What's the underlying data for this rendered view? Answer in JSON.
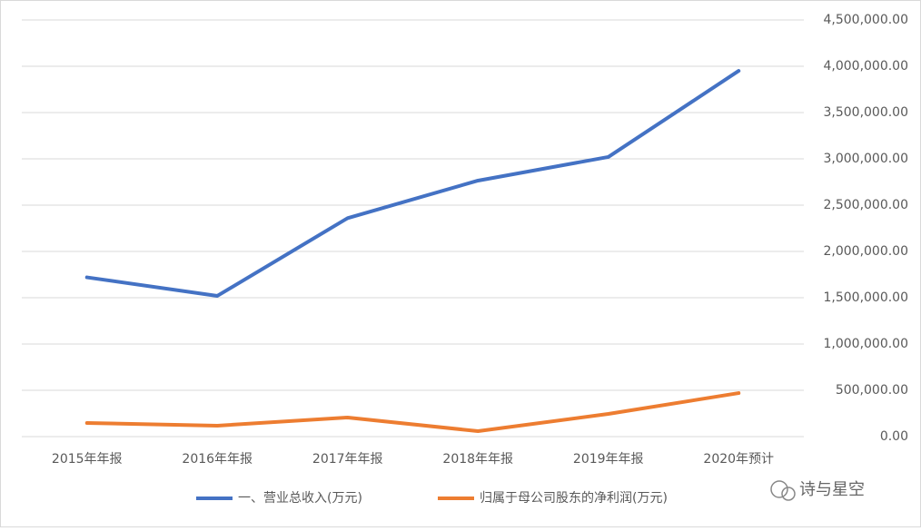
{
  "chart_data": {
    "type": "line",
    "categories": [
      "2015年年报",
      "2016年年报",
      "2017年年报",
      "2018年年报",
      "2019年年报",
      "2020年预计"
    ],
    "series": [
      {
        "name": "一、营业总收入(万元)",
        "color": "#4472c4",
        "values": [
          1720000,
          1520000,
          2360000,
          2765000,
          3020000,
          3950000
        ]
      },
      {
        "name": "归属于母公司股东的净利润(万元)",
        "color": "#ed7d31",
        "values": [
          147000,
          118000,
          206000,
          59000,
          245000,
          470000
        ]
      }
    ],
    "ylim": [
      0,
      4500000
    ],
    "yticks": [
      {
        "value": 0,
        "label": "0.00"
      },
      {
        "value": 500000,
        "label": "500,000.00"
      },
      {
        "value": 1000000,
        "label": "1,000,000.00"
      },
      {
        "value": 1500000,
        "label": "1,500,000.00"
      },
      {
        "value": 2000000,
        "label": "2,000,000.00"
      },
      {
        "value": 2500000,
        "label": "2,500,000.00"
      },
      {
        "value": 3000000,
        "label": "3,000,000.00"
      },
      {
        "value": 3500000,
        "label": "3,500,000.00"
      },
      {
        "value": 4000000,
        "label": "4,000,000.00"
      },
      {
        "value": 4500000,
        "label": "4,500,000.00"
      }
    ],
    "grid": true,
    "legend": "bottom",
    "watermark": "诗与星空"
  }
}
